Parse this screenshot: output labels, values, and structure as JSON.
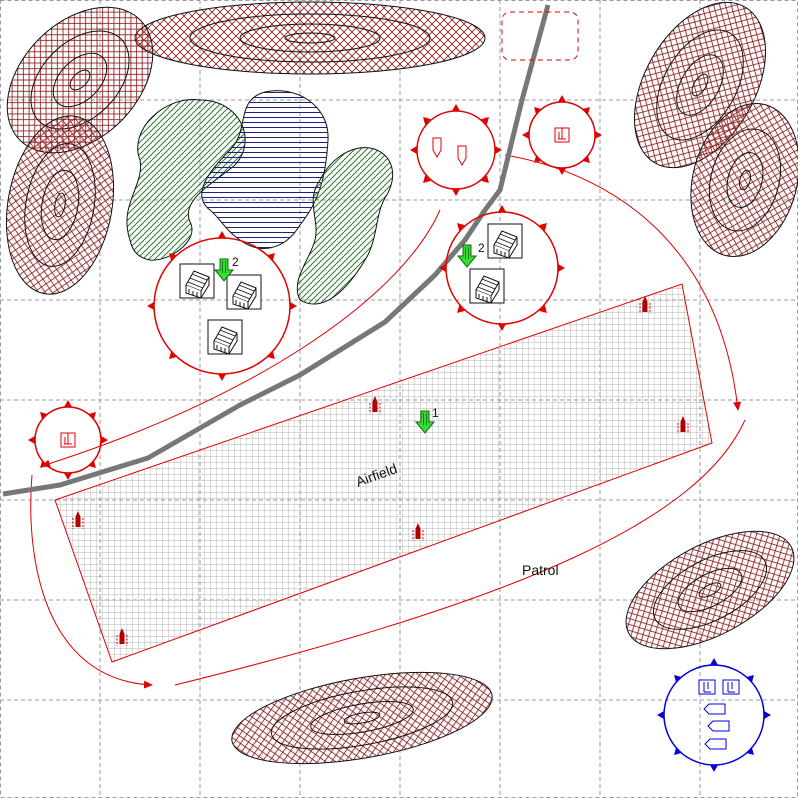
{
  "labels": {
    "airfield": "Airfield",
    "patrol": "Patrol"
  },
  "markers": {
    "drop_1": "1",
    "drop_2_village": "2",
    "drop_2_east": "2"
  },
  "colors": {
    "hostile": "#e00000",
    "friendly": "#0000dd",
    "hill": "#8b1a1a",
    "woods": "#2e7d32",
    "water": "#1a237e",
    "road": "#777777",
    "airfield_grid": "#9a9a9a",
    "drop_marker": "#22cc22"
  },
  "icons": {
    "building": "building-icon",
    "aircraft": "aircraft-icon",
    "drop": "green-drop-arrow-icon",
    "gun": "gun-icon",
    "boat": "boat-icon"
  }
}
